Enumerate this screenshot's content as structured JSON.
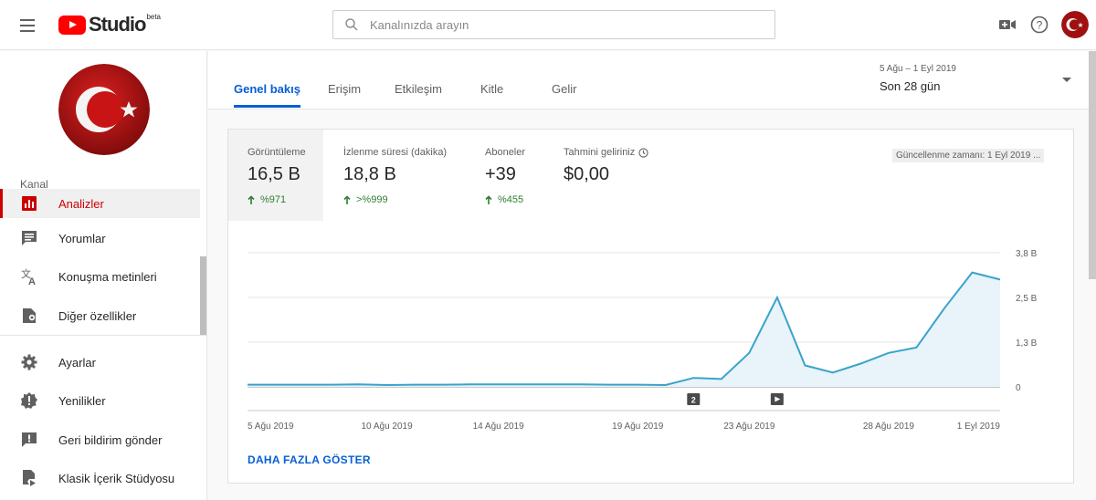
{
  "header": {
    "logo_text": "Studio",
    "logo_badge": "beta",
    "search_placeholder": "Kanalınızda arayın"
  },
  "sidebar": {
    "section_label": "Kanal",
    "items": [
      {
        "label": "Analizler",
        "icon": "analytics-icon",
        "active": true
      },
      {
        "label": "Yorumlar",
        "icon": "comments-icon"
      },
      {
        "label": "Konuşma metinleri",
        "icon": "translate-icon"
      },
      {
        "label": "Diğer özellikler",
        "icon": "other-features-icon"
      },
      {
        "label": "Ayarlar",
        "icon": "gear-icon"
      },
      {
        "label": "Yenilikler",
        "icon": "whats-new-icon"
      },
      {
        "label": "Geri bildirim gönder",
        "icon": "feedback-icon"
      },
      {
        "label": "Klasik İçerik Stüdyosu",
        "icon": "classic-studio-icon"
      }
    ]
  },
  "tabs": [
    {
      "label": "Genel bakış",
      "active": true
    },
    {
      "label": "Erişim"
    },
    {
      "label": "Etkileşim"
    },
    {
      "label": "Kitle"
    },
    {
      "label": "Gelir"
    }
  ],
  "date_range": {
    "range": "5 Ağu – 1 Eyl 2019",
    "label": "Son 28 gün"
  },
  "metrics": [
    {
      "label": "Görüntüleme",
      "value": "16,5 B",
      "delta": "%971",
      "active": true
    },
    {
      "label": "İzlenme süresi (dakika)",
      "value": "18,8 B",
      "delta": ">%999"
    },
    {
      "label": "Aboneler",
      "value": "+39",
      "delta": "%455"
    },
    {
      "label": "Tahmini geliriniz",
      "value": "$0,00",
      "delta": ""
    }
  ],
  "updated_text": "Güncellenme zamanı: 1 Eyl 2019 ...",
  "show_more": "DAHA FAZLA GÖSTER",
  "colors": {
    "accent": "#065fd4",
    "positive": "#2e7d32",
    "line": "#3aa3c9",
    "area": "#e8f3fa"
  },
  "chart_data": {
    "type": "area",
    "x": [
      "5 Ağu 2019",
      "6 Ağu 2019",
      "7 Ağu 2019",
      "8 Ağu 2019",
      "9 Ağu 2019",
      "10 Ağu 2019",
      "11 Ağu 2019",
      "12 Ağu 2019",
      "13 Ağu 2019",
      "14 Ağu 2019",
      "15 Ağu 2019",
      "16 Ağu 2019",
      "17 Ağu 2019",
      "18 Ağu 2019",
      "19 Ağu 2019",
      "20 Ağu 2019",
      "21 Ağu 2019",
      "22 Ağu 2019",
      "23 Ağu 2019",
      "24 Ağu 2019",
      "25 Ağu 2019",
      "26 Ağu 2019",
      "27 Ağu 2019",
      "28 Ağu 2019",
      "29 Ağu 2019",
      "30 Ağu 2019",
      "31 Ağu 2019",
      "1 Eyl 2019"
    ],
    "y": [
      0.06,
      0.06,
      0.06,
      0.06,
      0.07,
      0.05,
      0.06,
      0.06,
      0.07,
      0.07,
      0.07,
      0.07,
      0.07,
      0.06,
      0.06,
      0.05,
      0.25,
      0.22,
      0.95,
      2.5,
      0.6,
      0.4,
      0.65,
      0.95,
      1.1,
      2.2,
      3.2,
      3.0
    ],
    "x_ticks": [
      "5 Ağu 2019",
      "10 Ağu 2019",
      "14 Ağu 2019",
      "19 Ağu 2019",
      "23 Ağu 2019",
      "28 Ağu 2019",
      "1 Eyl 2019"
    ],
    "y_ticks": [
      "0",
      "1,3 B",
      "2,5 B",
      "3,8 B"
    ],
    "y_tick_values": [
      0,
      1.25,
      2.5,
      3.75
    ],
    "ylim": [
      0,
      3.75
    ],
    "markers": [
      {
        "label": "2",
        "x": "21 Ağu 2019",
        "type": "count"
      },
      {
        "label": "",
        "x": "24 Ağu 2019",
        "type": "video"
      }
    ]
  }
}
